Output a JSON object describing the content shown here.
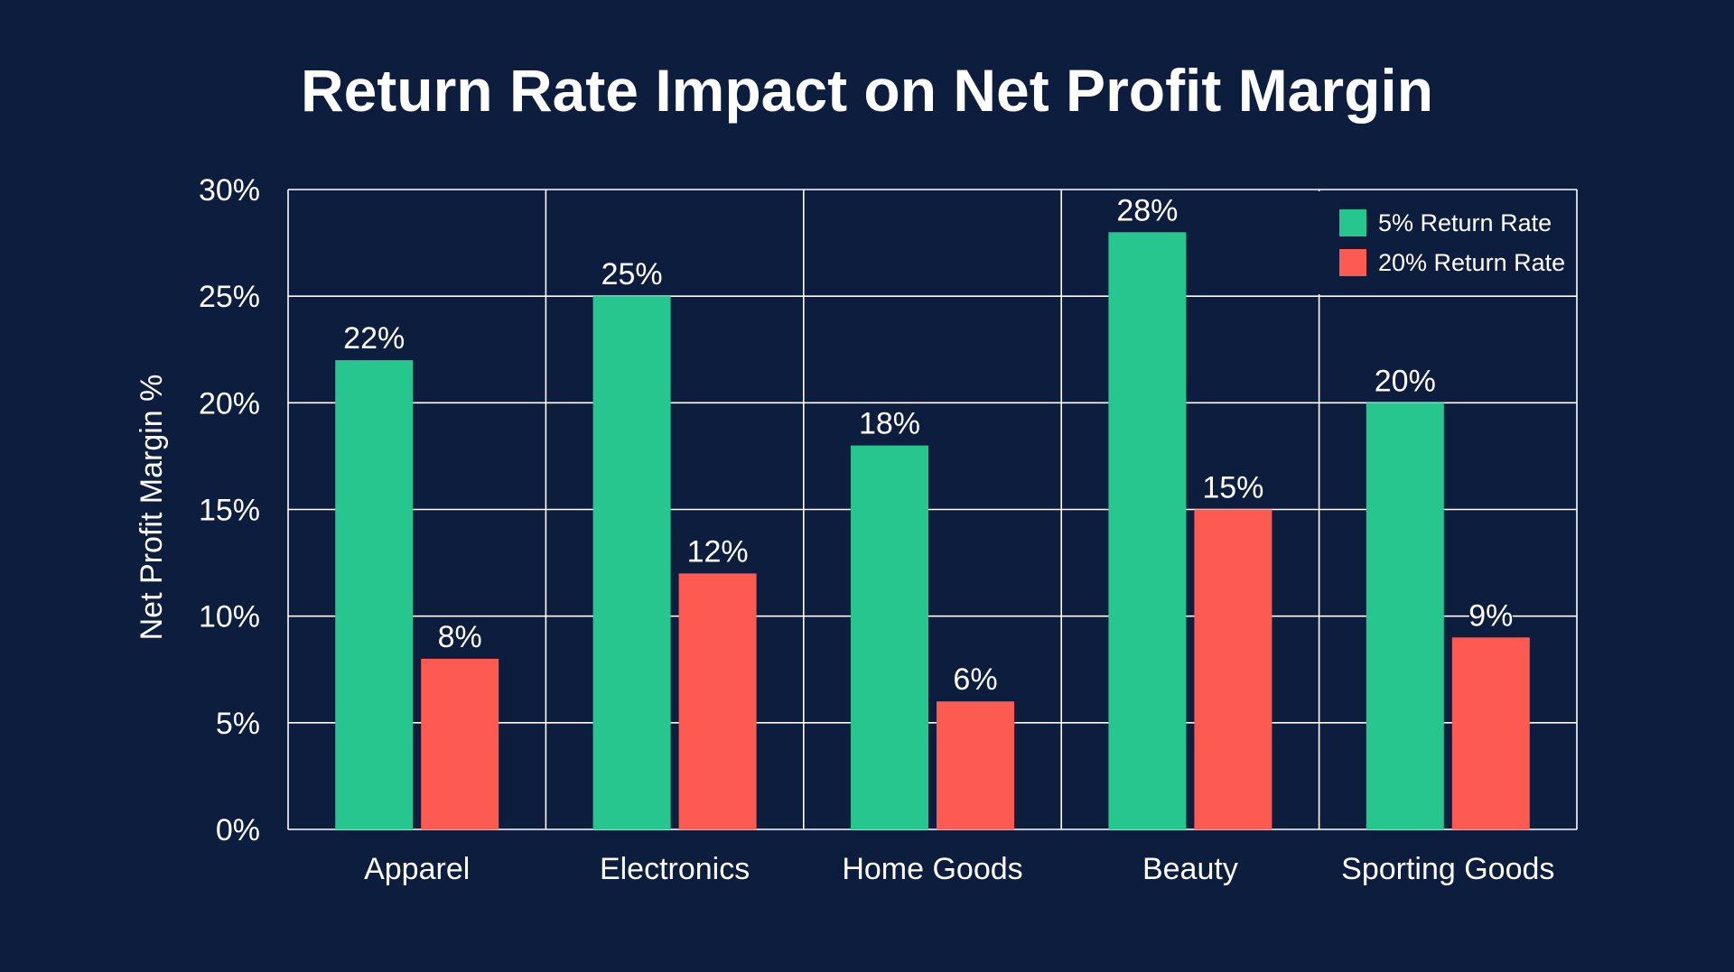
{
  "chart_data": {
    "type": "bar",
    "title": "Return Rate Impact on Net Profit Margin",
    "xlabel": "",
    "ylabel": "Net Profit Margin %",
    "categories": [
      "Apparel",
      "Electronics",
      "Home Goods",
      "Beauty",
      "Sporting Goods"
    ],
    "series": [
      {
        "name": "5% Return Rate",
        "values": [
          22,
          25,
          18,
          28,
          20
        ],
        "color": "#26c68e"
      },
      {
        "name": "20% Return Rate",
        "values": [
          8,
          12,
          6,
          15,
          9
        ],
        "color": "#fd5b51"
      }
    ],
    "data_labels": [
      [
        "22%",
        "25%",
        "18%",
        "28%",
        "20%"
      ],
      [
        "8%",
        "12%",
        "6%",
        "15%",
        "9%"
      ]
    ],
    "ylim": [
      0,
      30
    ],
    "yticks": [
      "0%",
      "5%",
      "10%",
      "15%",
      "20%",
      "25%",
      "30%"
    ],
    "grid": true,
    "legend_position": "top-right",
    "colors": {
      "background": "#0c1d3d",
      "grid": "#ffffff",
      "text": "#ffffff"
    }
  }
}
